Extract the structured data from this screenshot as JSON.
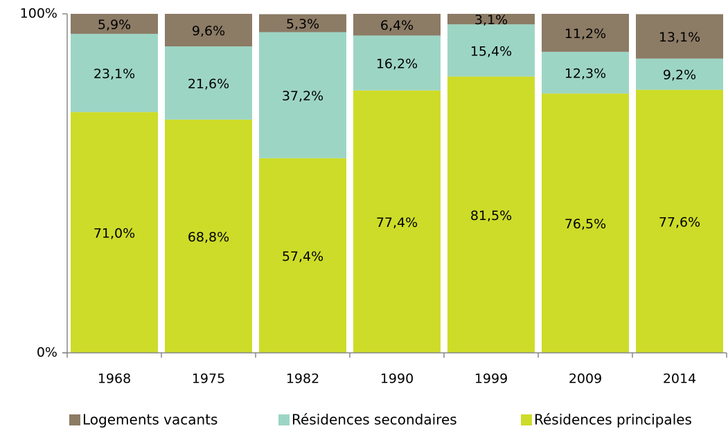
{
  "chart_data": {
    "type": "stacked_bar",
    "categories": [
      "1968",
      "1975",
      "1982",
      "1990",
      "1999",
      "2009",
      "2014"
    ],
    "series": [
      {
        "name": "Logements vacants",
        "color": "#8c7b65",
        "values": [
          5.9,
          9.6,
          5.3,
          6.4,
          3.1,
          11.2,
          13.1
        ],
        "value_labels": [
          "5,9%",
          "9,6%",
          "5,3%",
          "6,4%",
          "3,1%",
          "11,2%",
          "13,1%"
        ]
      },
      {
        "name": "Résidences secondaires",
        "color": "#9dd5c4",
        "values": [
          23.1,
          21.6,
          37.2,
          16.2,
          15.4,
          12.3,
          9.2
        ],
        "value_labels": [
          "23,1%",
          "21,6%",
          "37,2%",
          "16,2%",
          "15,4%",
          "12,3%",
          "9,2%"
        ]
      },
      {
        "name": "Résidences principales",
        "color": "#cddc29",
        "values": [
          71.0,
          68.8,
          57.4,
          77.4,
          81.5,
          76.5,
          77.6
        ],
        "value_labels": [
          "71,0%",
          "68,8%",
          "57,4%",
          "77,4%",
          "81,5%",
          "76,5%",
          "77,6%"
        ]
      }
    ],
    "ylim": [
      0,
      100
    ],
    "yticks": [
      {
        "value": 0,
        "label": "0%"
      },
      {
        "value": 100,
        "label": "100%"
      }
    ],
    "legend": "bottom"
  }
}
